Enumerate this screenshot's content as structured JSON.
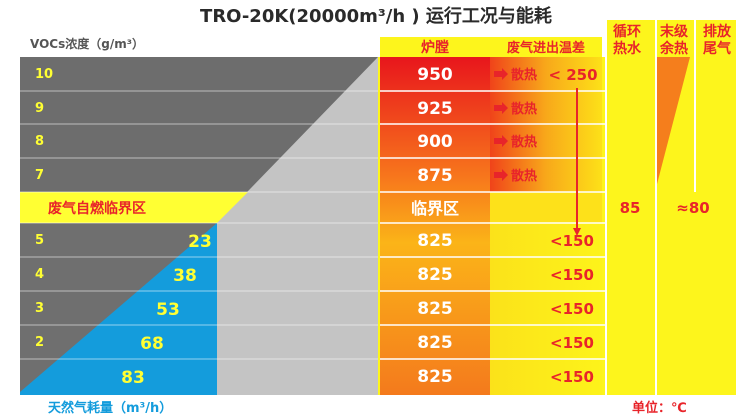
{
  "chart_data": {
    "type": "table",
    "title": "TRO-20K(20000m³/h ) 运行工况与能耗",
    "row_axis_label": "VOCs浓度（g/m³）",
    "gas_axis_label": "天然气耗量（m³/h）",
    "unit_label": "单位：℃",
    "headers": {
      "furnace": "炉膛",
      "exhaust_temp_diff": "废气进出温差",
      "circulating_water": "循环热水",
      "final_waste_heat": "末级余热",
      "exhaust_tail_gas": "排放尾气"
    },
    "critical_zone": {
      "label": "废气自燃临界区",
      "furnace_label": "临界区"
    },
    "rows": [
      {
        "concentration": "10",
        "furnace": "950",
        "heat_label": "散热",
        "temp_diff": "< 250",
        "gas": ""
      },
      {
        "concentration": "9",
        "furnace": "925",
        "heat_label": "散热",
        "temp_diff": "",
        "gas": ""
      },
      {
        "concentration": "8",
        "furnace": "900",
        "heat_label": "散热",
        "temp_diff": "",
        "gas": ""
      },
      {
        "concentration": "7",
        "furnace": "875",
        "heat_label": "散热",
        "temp_diff": "",
        "gas": ""
      },
      {
        "concentration": "5",
        "furnace": "825",
        "heat_label": "",
        "temp_diff": "<150",
        "gas": "23"
      },
      {
        "concentration": "4",
        "furnace": "825",
        "heat_label": "",
        "temp_diff": "<150",
        "gas": "38"
      },
      {
        "concentration": "3",
        "furnace": "825",
        "heat_label": "",
        "temp_diff": "<150",
        "gas": "53"
      },
      {
        "concentration": "2",
        "furnace": "825",
        "heat_label": "",
        "temp_diff": "<150",
        "gas": "68"
      },
      {
        "concentration": "",
        "furnace": "825",
        "heat_label": "",
        "temp_diff": "<150",
        "gas": "83"
      }
    ],
    "circulating_water_value": "85",
    "exhaust_tail_value": "≈80",
    "colors": {
      "gray_dark": "#6d6d6d",
      "gray_light": "#c4c4c4",
      "yellow": "#ffff33",
      "blue": "#149cdc",
      "red": "#e81e1e",
      "orange": "#f57e1c",
      "header_red": "#e8242a"
    }
  }
}
